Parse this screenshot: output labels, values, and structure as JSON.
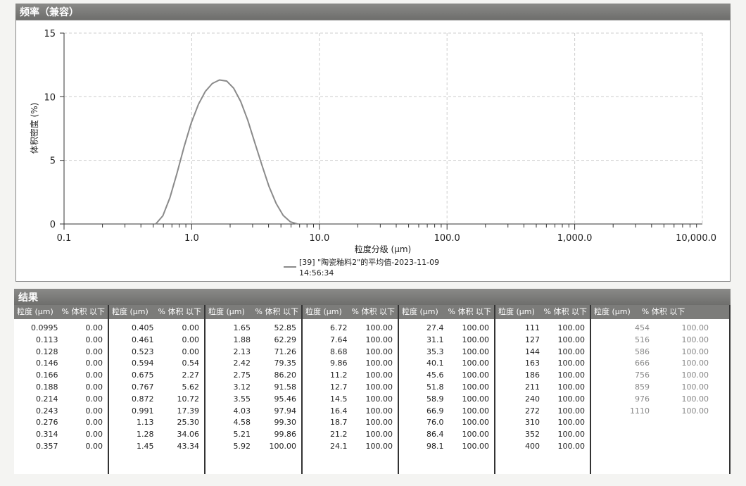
{
  "chart_title": "频率（兼容）",
  "results_title": "结果",
  "chart_data": {
    "type": "line",
    "xlabel": "粒度分级 (μm)",
    "ylabel": "体积密度 (%)",
    "xscale": "log",
    "xlim": [
      0.1,
      10000
    ],
    "ylim": [
      0,
      15
    ],
    "xticks": [
      "0.1",
      "1.0",
      "10.0",
      "100.0",
      "1,000.0",
      "10,000.0"
    ],
    "yticks": [
      "0",
      "5",
      "10",
      "15"
    ],
    "grid": true,
    "legend_position": "bottom-center",
    "series": [
      {
        "name": "[39] \"陶瓷釉料2\"的平均值-2023-11-09 14:56:34",
        "color": "#8a8a8a",
        "x": [
          0.523,
          0.594,
          0.675,
          0.767,
          0.872,
          0.991,
          1.13,
          1.28,
          1.45,
          1.65,
          1.88,
          2.13,
          2.42,
          2.75,
          3.12,
          3.55,
          4.03,
          4.58,
          5.21,
          5.92,
          6.72
        ],
        "y": [
          0,
          0.64,
          2.06,
          3.99,
          6.07,
          7.94,
          9.41,
          10.42,
          11.04,
          11.32,
          11.23,
          10.67,
          9.63,
          8.15,
          6.4,
          4.62,
          2.95,
          1.62,
          0.67,
          0.17,
          0
        ]
      }
    ]
  },
  "legend": {
    "line1": "[39] \"陶瓷釉料2\"的平均值-2023-11-09",
    "line2": "14:56:34"
  },
  "table": {
    "headers": [
      "粒度 (μm)",
      "% 体积 以下"
    ],
    "groups": [
      [
        [
          "0.0995",
          "0.00"
        ],
        [
          "0.113",
          "0.00"
        ],
        [
          "0.128",
          "0.00"
        ],
        [
          "0.146",
          "0.00"
        ],
        [
          "0.166",
          "0.00"
        ],
        [
          "0.188",
          "0.00"
        ],
        [
          "0.214",
          "0.00"
        ],
        [
          "0.243",
          "0.00"
        ],
        [
          "0.276",
          "0.00"
        ],
        [
          "0.314",
          "0.00"
        ],
        [
          "0.357",
          "0.00"
        ]
      ],
      [
        [
          "0.405",
          "0.00"
        ],
        [
          "0.461",
          "0.00"
        ],
        [
          "0.523",
          "0.00"
        ],
        [
          "0.594",
          "0.54"
        ],
        [
          "0.675",
          "2.27"
        ],
        [
          "0.767",
          "5.62"
        ],
        [
          "0.872",
          "10.72"
        ],
        [
          "0.991",
          "17.39"
        ],
        [
          "1.13",
          "25.30"
        ],
        [
          "1.28",
          "34.06"
        ],
        [
          "1.45",
          "43.34"
        ]
      ],
      [
        [
          "1.65",
          "52.85"
        ],
        [
          "1.88",
          "62.29"
        ],
        [
          "2.13",
          "71.26"
        ],
        [
          "2.42",
          "79.35"
        ],
        [
          "2.75",
          "86.20"
        ],
        [
          "3.12",
          "91.58"
        ],
        [
          "3.55",
          "95.46"
        ],
        [
          "4.03",
          "97.94"
        ],
        [
          "4.58",
          "99.30"
        ],
        [
          "5.21",
          "99.86"
        ],
        [
          "5.92",
          "100.00"
        ]
      ],
      [
        [
          "6.72",
          "100.00"
        ],
        [
          "7.64",
          "100.00"
        ],
        [
          "8.68",
          "100.00"
        ],
        [
          "9.86",
          "100.00"
        ],
        [
          "11.2",
          "100.00"
        ],
        [
          "12.7",
          "100.00"
        ],
        [
          "14.5",
          "100.00"
        ],
        [
          "16.4",
          "100.00"
        ],
        [
          "18.7",
          "100.00"
        ],
        [
          "21.2",
          "100.00"
        ],
        [
          "24.1",
          "100.00"
        ]
      ],
      [
        [
          "27.4",
          "100.00"
        ],
        [
          "31.1",
          "100.00"
        ],
        [
          "35.3",
          "100.00"
        ],
        [
          "40.1",
          "100.00"
        ],
        [
          "45.6",
          "100.00"
        ],
        [
          "51.8",
          "100.00"
        ],
        [
          "58.9",
          "100.00"
        ],
        [
          "66.9",
          "100.00"
        ],
        [
          "76.0",
          "100.00"
        ],
        [
          "86.4",
          "100.00"
        ],
        [
          "98.1",
          "100.00"
        ]
      ],
      [
        [
          "111",
          "100.00"
        ],
        [
          "127",
          "100.00"
        ],
        [
          "144",
          "100.00"
        ],
        [
          "163",
          "100.00"
        ],
        [
          "186",
          "100.00"
        ],
        [
          "211",
          "100.00"
        ],
        [
          "240",
          "100.00"
        ],
        [
          "272",
          "100.00"
        ],
        [
          "310",
          "100.00"
        ],
        [
          "352",
          "100.00"
        ],
        [
          "400",
          "100.00"
        ]
      ],
      [
        [
          "454",
          "100.00"
        ],
        [
          "516",
          "100.00"
        ],
        [
          "586",
          "100.00"
        ],
        [
          "666",
          "100.00"
        ],
        [
          "756",
          "100.00"
        ],
        [
          "859",
          "100.00"
        ],
        [
          "976",
          "100.00"
        ],
        [
          "1110",
          "100.00"
        ]
      ]
    ]
  }
}
